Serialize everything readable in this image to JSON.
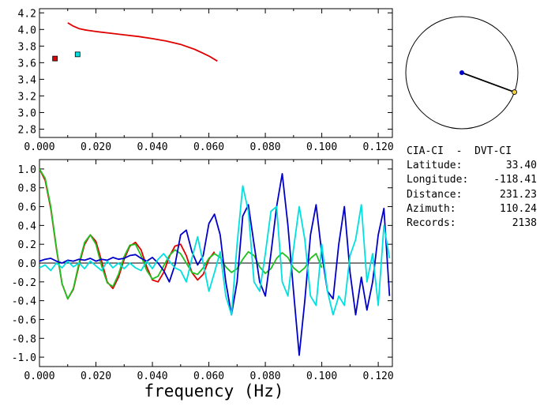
{
  "chart_data": [
    {
      "type": "scatter",
      "title": "",
      "xlabel": "",
      "ylabel": "",
      "xlim": [
        0.0,
        0.125
      ],
      "ylim": [
        2.7,
        4.25
      ],
      "x_ticks": [
        "0.000",
        "0.020",
        "0.040",
        "0.060",
        "0.080",
        "0.100",
        "0.120"
      ],
      "y_ticks": [
        "2.8",
        "3.0",
        "3.2",
        "3.4",
        "3.6",
        "3.8",
        "4.0",
        "4.2"
      ],
      "series": [
        {
          "color": "#e00000",
          "kind": "line",
          "x": [
            0.01,
            0.012,
            0.014,
            0.016,
            0.018,
            0.02,
            0.025,
            0.03,
            0.035,
            0.04,
            0.045,
            0.05,
            0.055,
            0.06,
            0.063
          ],
          "y": [
            4.08,
            4.04,
            4.01,
            3.995,
            3.985,
            3.975,
            3.955,
            3.935,
            3.915,
            3.89,
            3.86,
            3.82,
            3.76,
            3.68,
            3.62
          ]
        },
        {
          "color": "#e00000",
          "kind": "marker",
          "x": [
            0.0055
          ],
          "y": [
            3.65
          ]
        },
        {
          "color": "#00dede",
          "kind": "marker",
          "x": [
            0.0135
          ],
          "y": [
            3.7
          ]
        }
      ]
    },
    {
      "type": "line",
      "title": "",
      "xlabel": "frequency (Hz)",
      "ylabel": "",
      "xlim": [
        0.0,
        0.125
      ],
      "ylim": [
        -1.1,
        1.1
      ],
      "x_ticks": [
        "0.000",
        "0.020",
        "0.040",
        "0.060",
        "0.080",
        "0.100",
        "0.120"
      ],
      "y_ticks": [
        "1.0",
        "0.8",
        "0.6",
        "0.4",
        "0.2",
        "0.0",
        "-0.2",
        "-0.4",
        "-0.6",
        "-0.8",
        "-1.0"
      ],
      "zero_line": true,
      "series": [
        {
          "color": "#e00000",
          "x": [
            0.0,
            0.002,
            0.004,
            0.006,
            0.008,
            0.01,
            0.012,
            0.014,
            0.016,
            0.018,
            0.02,
            0.022,
            0.024,
            0.026,
            0.028,
            0.03,
            0.032,
            0.034,
            0.036,
            0.038,
            0.04,
            0.042,
            0.044,
            0.046,
            0.048,
            0.05,
            0.052,
            0.054,
            0.056,
            0.058,
            0.06,
            0.062
          ],
          "y": [
            1.0,
            0.88,
            0.58,
            0.15,
            -0.22,
            -0.38,
            -0.28,
            -0.02,
            0.2,
            0.3,
            0.23,
            0.02,
            -0.2,
            -0.27,
            -0.15,
            0.04,
            0.18,
            0.22,
            0.14,
            -0.04,
            -0.18,
            -0.2,
            -0.1,
            0.07,
            0.18,
            0.2,
            0.08,
            -0.1,
            -0.18,
            -0.12,
            0.04,
            0.12
          ]
        },
        {
          "color": "#20c020",
          "x": [
            0.0,
            0.002,
            0.004,
            0.006,
            0.008,
            0.01,
            0.012,
            0.014,
            0.016,
            0.018,
            0.02,
            0.022,
            0.024,
            0.026,
            0.028,
            0.03,
            0.032,
            0.034,
            0.036,
            0.038,
            0.04,
            0.042,
            0.044,
            0.046,
            0.048,
            0.05,
            0.052,
            0.054,
            0.056,
            0.058,
            0.06,
            0.062,
            0.064,
            0.066,
            0.068,
            0.07,
            0.072,
            0.074,
            0.076,
            0.078,
            0.08,
            0.082,
            0.084,
            0.086,
            0.088,
            0.09,
            0.092,
            0.094,
            0.096,
            0.098,
            0.1
          ],
          "y": [
            1.0,
            0.9,
            0.6,
            0.16,
            -0.22,
            -0.38,
            -0.27,
            0.0,
            0.22,
            0.3,
            0.2,
            -0.03,
            -0.21,
            -0.25,
            -0.12,
            0.07,
            0.19,
            0.2,
            0.08,
            -0.08,
            -0.17,
            -0.14,
            -0.03,
            0.08,
            0.14,
            0.1,
            0.0,
            -0.1,
            -0.12,
            -0.05,
            0.05,
            0.1,
            0.06,
            -0.04,
            -0.1,
            -0.06,
            0.04,
            0.12,
            0.08,
            -0.04,
            -0.11,
            -0.06,
            0.05,
            0.11,
            0.06,
            -0.05,
            -0.1,
            -0.05,
            0.05,
            0.1,
            -0.05
          ]
        },
        {
          "color": "#0000c8",
          "x": [
            0.0,
            0.002,
            0.004,
            0.006,
            0.008,
            0.01,
            0.012,
            0.014,
            0.016,
            0.018,
            0.02,
            0.022,
            0.024,
            0.026,
            0.028,
            0.03,
            0.032,
            0.034,
            0.036,
            0.038,
            0.04,
            0.042,
            0.044,
            0.046,
            0.048,
            0.05,
            0.052,
            0.054,
            0.056,
            0.058,
            0.06,
            0.062,
            0.064,
            0.066,
            0.068,
            0.07,
            0.072,
            0.074,
            0.076,
            0.078,
            0.08,
            0.082,
            0.084,
            0.086,
            0.088,
            0.09,
            0.092,
            0.094,
            0.096,
            0.098,
            0.1,
            0.102,
            0.104,
            0.106,
            0.108,
            0.11,
            0.112,
            0.114,
            0.116,
            0.118,
            0.12,
            0.122,
            0.124
          ],
          "y": [
            0.02,
            0.04,
            0.05,
            0.02,
            0.0,
            0.03,
            0.02,
            0.04,
            0.03,
            0.05,
            0.02,
            0.04,
            0.03,
            0.06,
            0.04,
            0.05,
            0.08,
            0.09,
            0.05,
            0.02,
            0.06,
            0.0,
            -0.08,
            -0.2,
            -0.02,
            0.3,
            0.35,
            0.12,
            -0.02,
            0.08,
            0.42,
            0.52,
            0.3,
            -0.2,
            -0.55,
            -0.2,
            0.5,
            0.62,
            0.2,
            -0.2,
            -0.35,
            0.1,
            0.6,
            0.95,
            0.4,
            -0.3,
            -0.98,
            -0.4,
            0.3,
            0.62,
            0.1,
            -0.3,
            -0.38,
            0.2,
            0.6,
            -0.1,
            -0.55,
            -0.15,
            -0.5,
            -0.2,
            0.3,
            0.58,
            -0.35
          ]
        },
        {
          "color": "#00e0e0",
          "x": [
            0.0,
            0.002,
            0.004,
            0.006,
            0.008,
            0.01,
            0.012,
            0.014,
            0.016,
            0.018,
            0.02,
            0.022,
            0.024,
            0.026,
            0.028,
            0.03,
            0.032,
            0.034,
            0.036,
            0.038,
            0.04,
            0.042,
            0.044,
            0.046,
            0.048,
            0.05,
            0.052,
            0.054,
            0.056,
            0.058,
            0.06,
            0.062,
            0.064,
            0.066,
            0.068,
            0.07,
            0.072,
            0.074,
            0.076,
            0.078,
            0.08,
            0.082,
            0.084,
            0.086,
            0.088,
            0.09,
            0.092,
            0.094,
            0.096,
            0.098,
            0.1,
            0.102,
            0.104,
            0.106,
            0.108,
            0.11,
            0.112,
            0.114,
            0.116,
            0.118,
            0.12,
            0.122,
            0.124
          ],
          "y": [
            -0.05,
            -0.02,
            -0.08,
            0.0,
            -0.05,
            0.02,
            -0.04,
            0.0,
            -0.06,
            0.02,
            -0.03,
            -0.08,
            0.02,
            -0.05,
            0.0,
            -0.06,
            0.0,
            -0.05,
            -0.08,
            0.02,
            -0.06,
            0.04,
            0.1,
            0.02,
            -0.05,
            -0.08,
            -0.2,
            0.05,
            0.28,
            0.0,
            -0.3,
            -0.1,
            0.12,
            -0.35,
            -0.55,
            0.2,
            0.82,
            0.55,
            -0.2,
            -0.3,
            0.1,
            0.55,
            0.6,
            -0.2,
            -0.35,
            0.15,
            0.6,
            0.25,
            -0.35,
            -0.45,
            0.2,
            -0.3,
            -0.55,
            -0.35,
            -0.45,
            0.08,
            0.25,
            0.62,
            -0.2,
            0.1,
            -0.45,
            0.4,
            0.05
          ]
        }
      ]
    }
  ],
  "info": {
    "station_pair": "CIA-CI  -  DVT-CI",
    "rows": [
      {
        "label": "Latitude:",
        "value": "33.40"
      },
      {
        "label": "Longitude:",
        "value": "-118.41"
      },
      {
        "label": "Distance:",
        "value": "231.23"
      },
      {
        "label": "Azimuth:",
        "value": "110.24"
      },
      {
        "label": "Records:",
        "value": "2138"
      }
    ]
  },
  "azimuth_plot": {
    "azimuth_deg": 110.24,
    "line_color": "#000000",
    "center_marker_color": "#0000c8",
    "end_marker_color": "#f0d040"
  }
}
